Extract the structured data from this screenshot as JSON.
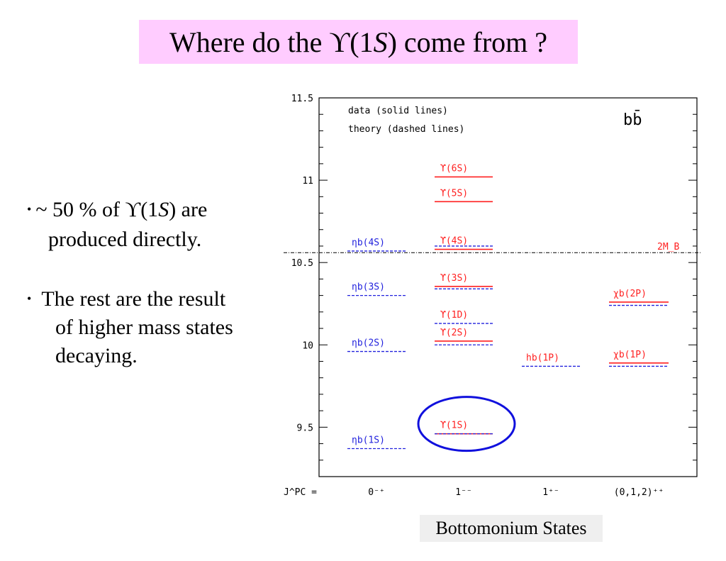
{
  "title": {
    "before": "Where do the ϒ(1",
    "italic": "S",
    "after": ") come from ?"
  },
  "bullets": [
    {
      "dot": "•",
      "before": "~ 50 % of  ϒ(1",
      "italic": "S",
      "after": ") are",
      "line2": "produced directly."
    },
    {
      "dot": "•",
      "line1": "The rest are the result",
      "line2": "of higher mass states",
      "line3": "decaying."
    }
  ],
  "caption": "Bottomonium States",
  "colors": {
    "data": "#ff2020",
    "theory": "#2222dd",
    "highlight": "#1010dd",
    "title_bg": "#ffccff"
  },
  "chart_data": {
    "type": "level-diagram",
    "legend": [
      "data (solid lines)",
      "theory (dashed lines)"
    ],
    "quark_label": "bb̄",
    "ylim": [
      9.2,
      11.5
    ],
    "y_ticks": [
      "11.5",
      "11",
      "10.5",
      "10",
      "9.5"
    ],
    "y_tick_values": [
      11.5,
      11.0,
      10.5,
      10.0,
      9.5
    ],
    "x_axis_label": "J^PC =",
    "columns": [
      "0⁻⁺",
      "1⁻⁻",
      "1⁺⁻",
      "(0,1,2)⁺⁺"
    ],
    "threshold": {
      "label": "2M_B",
      "mass": 10.56
    },
    "states": [
      {
        "label": "ηb(4S)",
        "column": 0,
        "theory": 10.57
      },
      {
        "label": "ηb(3S)",
        "column": 0,
        "theory": 10.3
      },
      {
        "label": "ηb(2S)",
        "column": 0,
        "theory": 9.96
      },
      {
        "label": "ηb(1S)",
        "column": 0,
        "theory": 9.37
      },
      {
        "label": "ϒ(6S)",
        "column": 1,
        "data": 11.02
      },
      {
        "label": "ϒ(5S)",
        "column": 1,
        "data": 10.87
      },
      {
        "label": "ϒ(4S)",
        "column": 1,
        "data": 10.58,
        "theory": 10.6
      },
      {
        "label": "ϒ(3S)",
        "column": 1,
        "data": 10.355,
        "theory": 10.34
      },
      {
        "label": "ϒ(1D)",
        "column": 1,
        "theory": 10.13
      },
      {
        "label": "ϒ(2S)",
        "column": 1,
        "data": 10.023,
        "theory": 10.0
      },
      {
        "label": "ϒ(1S)",
        "column": 1,
        "data": 9.46,
        "theory": 9.46,
        "highlighted": true
      },
      {
        "label": "hb(1P)",
        "column": 2,
        "theory": 9.87
      },
      {
        "label": "χb(2P)",
        "column": 3,
        "data": 10.26,
        "theory": 10.24
      },
      {
        "label": "χb(1P)",
        "column": 3,
        "data": 9.89,
        "theory": 9.87
      }
    ]
  }
}
